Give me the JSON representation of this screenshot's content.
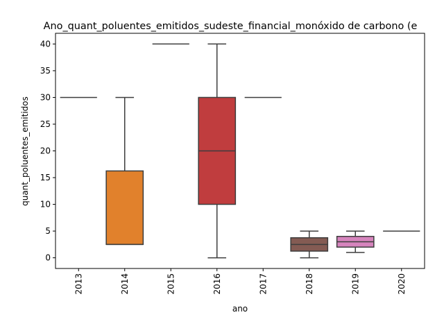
{
  "chart_data": {
    "type": "boxplot",
    "title": "Ano_quant_poluentes_emitidos_sudeste_financial_monóxido de carbono (e",
    "xlabel": "ano",
    "ylabel": "quant_poluentes_emitidos",
    "ylim": [
      -2,
      42
    ],
    "yticks": [
      "0",
      "5",
      "10",
      "15",
      "20",
      "25",
      "30",
      "35",
      "40"
    ],
    "grid": false,
    "categories": [
      "2013",
      "2014",
      "2015",
      "2016",
      "2017",
      "2018",
      "2019",
      "2020"
    ],
    "boxes": [
      {
        "category": "2013",
        "min": 30,
        "q1": 30,
        "median": 30,
        "q3": 30,
        "max": 30,
        "color": "#3274a1"
      },
      {
        "category": "2014",
        "min": 2.5,
        "q1": 2.5,
        "median": 2.5,
        "q3": 16.25,
        "max": 30,
        "color": "#e1812c"
      },
      {
        "category": "2015",
        "min": 40,
        "q1": 40,
        "median": 40,
        "q3": 40,
        "max": 40,
        "color": "#3a923a"
      },
      {
        "category": "2016",
        "min": 0,
        "q1": 10,
        "median": 20,
        "q3": 30,
        "max": 40,
        "color": "#c03d3e"
      },
      {
        "category": "2017",
        "min": 30,
        "q1": 30,
        "median": 30,
        "q3": 30,
        "max": 30,
        "color": "#9372b2"
      },
      {
        "category": "2018",
        "min": 0,
        "q1": 1.25,
        "median": 2.5,
        "q3": 3.75,
        "max": 5,
        "color": "#845b53"
      },
      {
        "category": "2019",
        "min": 1,
        "q1": 2,
        "median": 3,
        "q3": 4,
        "max": 5,
        "color": "#d684bd"
      },
      {
        "category": "2020",
        "min": 5,
        "q1": 5,
        "median": 5,
        "q3": 5,
        "max": 5,
        "color": "#7f7f7f"
      }
    ],
    "line_color": "#3d3d3d"
  }
}
